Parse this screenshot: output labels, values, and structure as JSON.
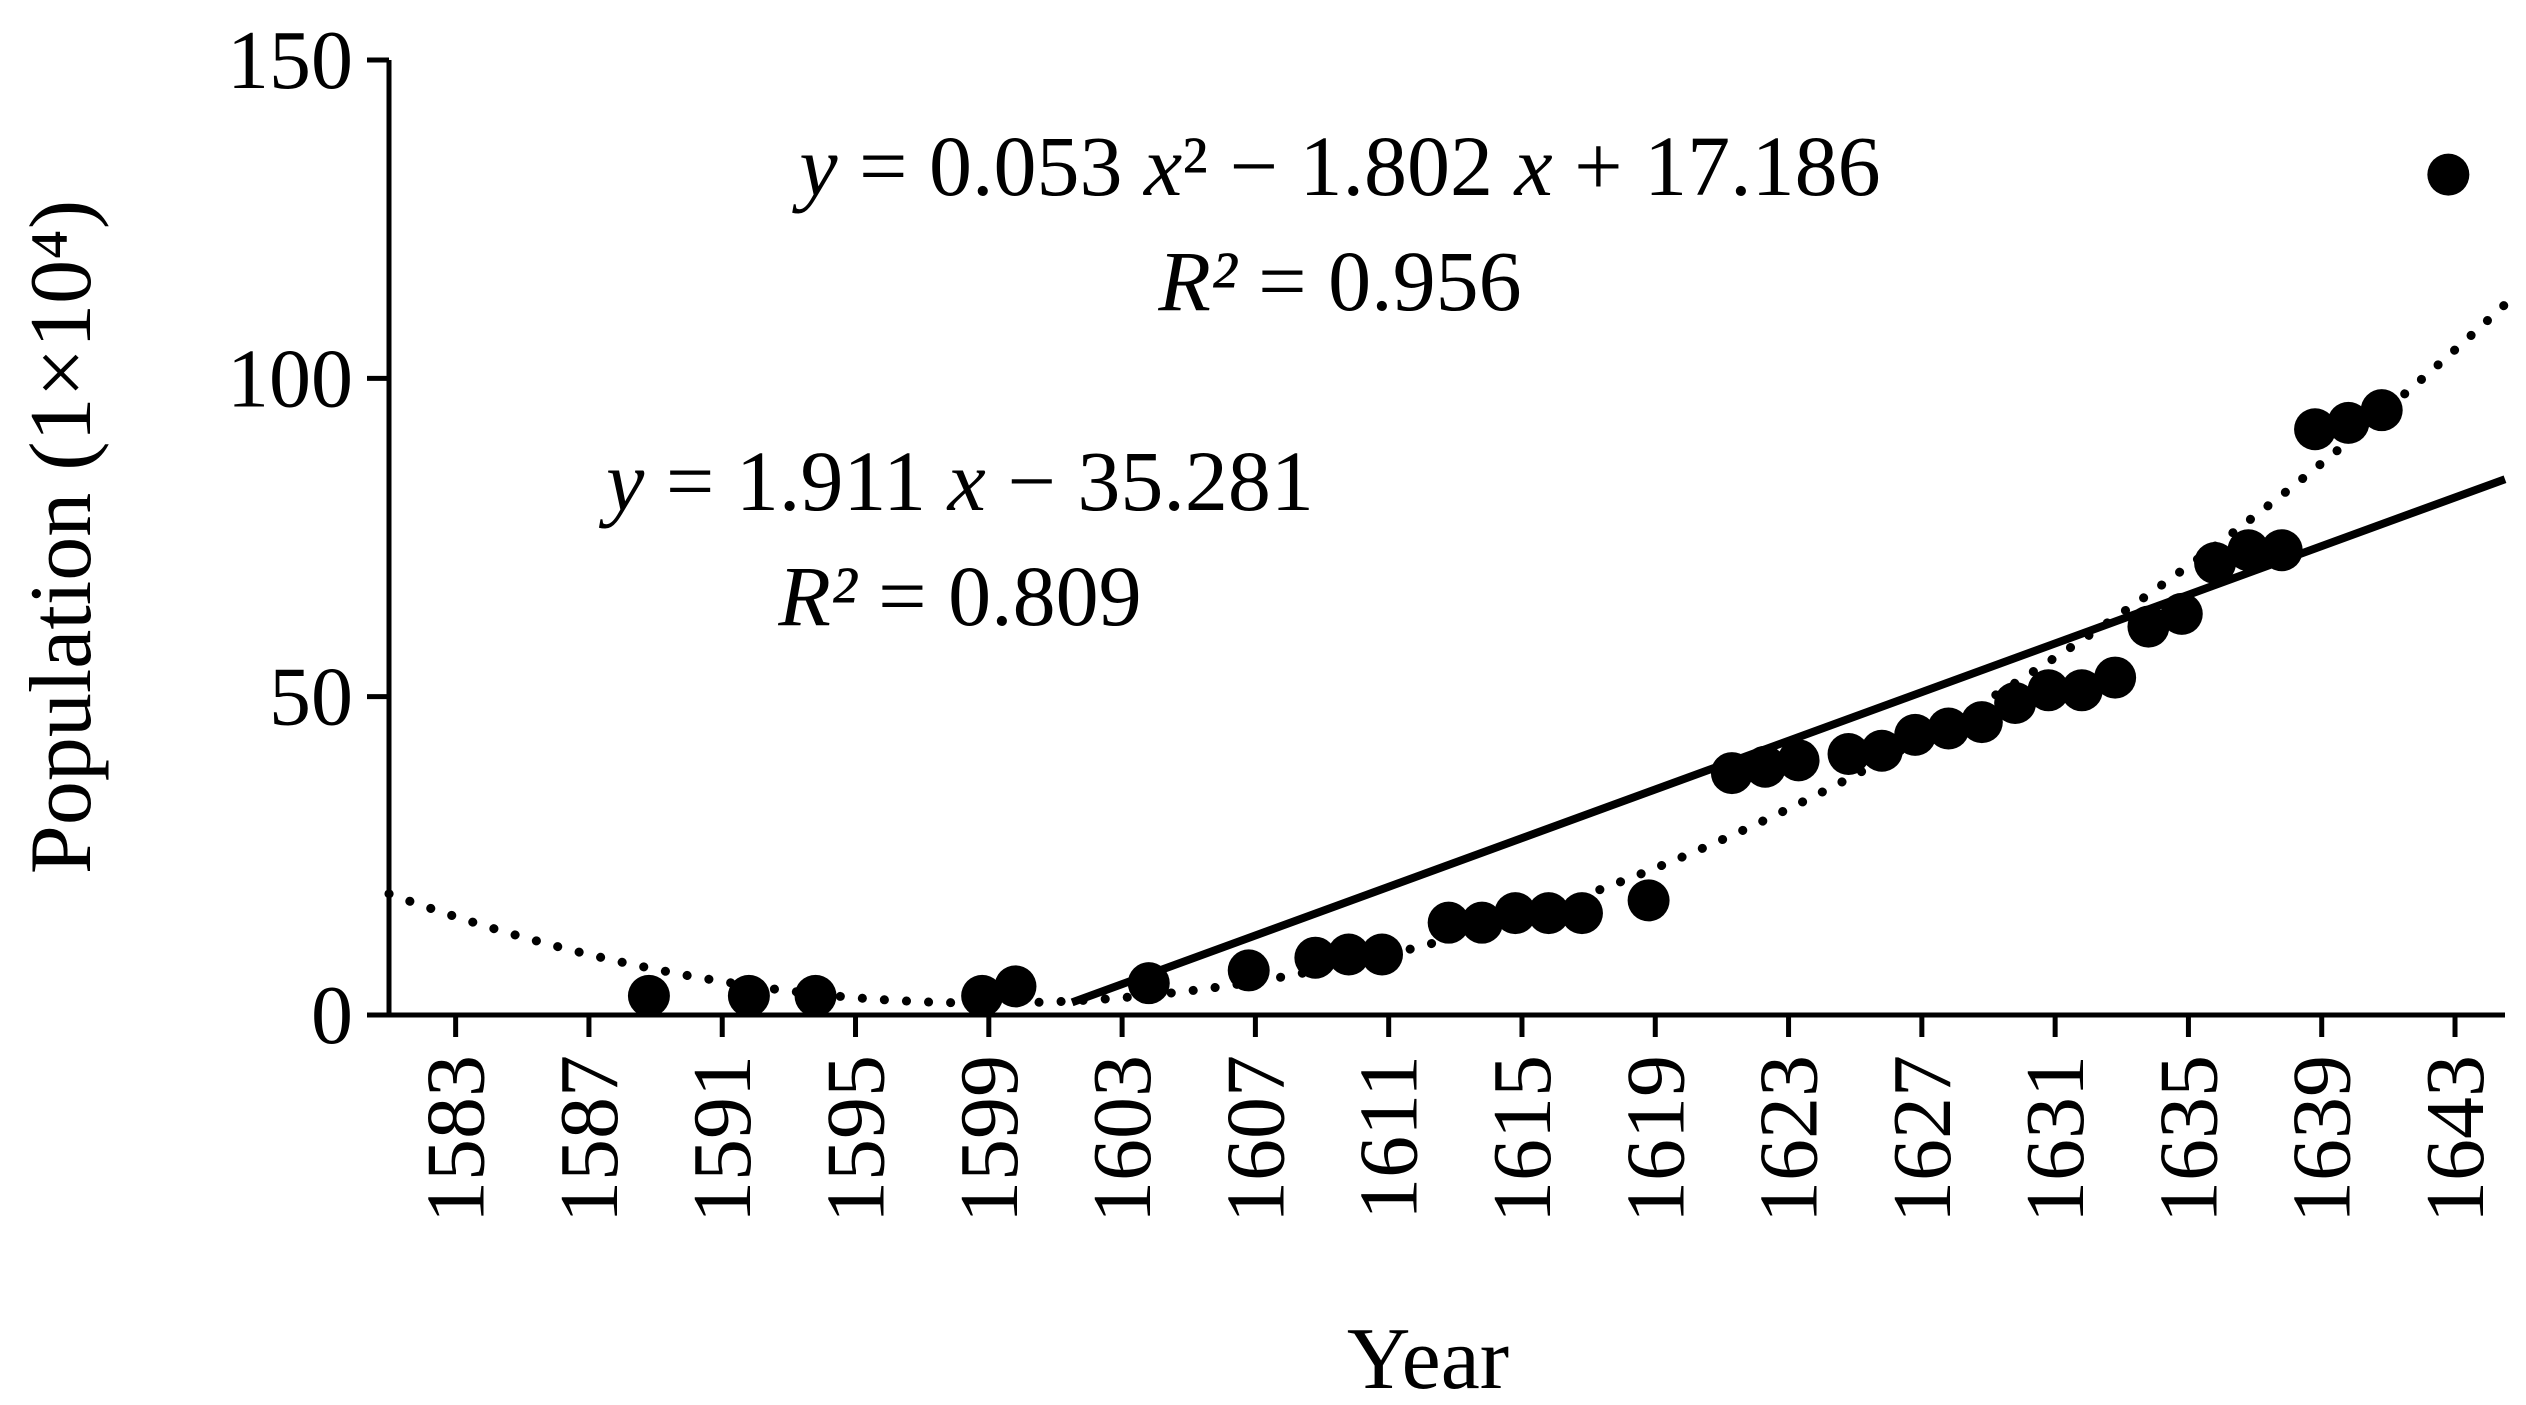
{
  "chart_data": {
    "type": "scatter",
    "xlabel": "Year",
    "ylabel": "Population (1×10⁴)",
    "xlim": [
      1581,
      1644.5
    ],
    "ylim": [
      0,
      150
    ],
    "x_ticks": [
      "1583",
      "1587",
      "1591",
      "1595",
      "1599",
      "1603",
      "1607",
      "1611",
      "1615",
      "1619",
      "1623",
      "1627",
      "1631",
      "1635",
      "1639",
      "1643"
    ],
    "y_ticks": [
      "0",
      "50",
      "100",
      "150"
    ],
    "grid": false,
    "series": [
      {
        "points": [
          [
            1588.8,
            3.0
          ],
          [
            1591.8,
            3.0
          ],
          [
            1593.8,
            3.0
          ],
          [
            1598.8,
            3.0
          ],
          [
            1599.8,
            4.5
          ],
          [
            1603.8,
            5.0
          ],
          [
            1606.8,
            7.0
          ],
          [
            1608.8,
            9.0
          ],
          [
            1609.8,
            9.5
          ],
          [
            1610.8,
            9.5
          ],
          [
            1612.8,
            14.5
          ],
          [
            1613.8,
            14.5
          ],
          [
            1614.8,
            16.0
          ],
          [
            1615.8,
            16.0
          ],
          [
            1616.8,
            16.0
          ],
          [
            1618.8,
            18.0
          ],
          [
            1621.3,
            38.0
          ],
          [
            1622.3,
            39.0
          ],
          [
            1623.3,
            40.0
          ],
          [
            1624.8,
            41.0
          ],
          [
            1625.8,
            41.5
          ],
          [
            1626.8,
            44.0
          ],
          [
            1627.8,
            45.0
          ],
          [
            1628.8,
            46.0
          ],
          [
            1629.8,
            49.0
          ],
          [
            1630.8,
            51.0
          ],
          [
            1631.8,
            51.0
          ],
          [
            1632.8,
            53.0
          ],
          [
            1633.8,
            61.0
          ],
          [
            1634.8,
            63.0
          ],
          [
            1635.8,
            71.0
          ],
          [
            1636.8,
            73.0
          ],
          [
            1637.8,
            73.0
          ],
          [
            1638.8,
            92.0
          ],
          [
            1639.8,
            93.0
          ],
          [
            1640.8,
            95.0
          ],
          [
            1642.8,
            132.0
          ]
        ]
      }
    ],
    "trendlines": [
      {
        "type": "linear",
        "equation_parts": [
          "y",
          " = 1.911 ",
          "x",
          " − 35.281"
        ],
        "r2_label": "R²",
        "r2_value": " = 0.809",
        "style": "solid",
        "x_start": 1601.5,
        "x_end": 1644.5
      },
      {
        "type": "polynomial",
        "equation_parts": [
          "y",
          " = 0.053 ",
          "x",
          "²",
          " − 1.802 ",
          "x",
          " + 17.186"
        ],
        "r2_label": "R²",
        "r2_value": " = 0.956",
        "style": "dotted",
        "x_start": 1581,
        "x_end": 1644.5
      }
    ],
    "colors": {
      "marker": "#000000",
      "line": "#000000",
      "background": "#ffffff"
    }
  }
}
